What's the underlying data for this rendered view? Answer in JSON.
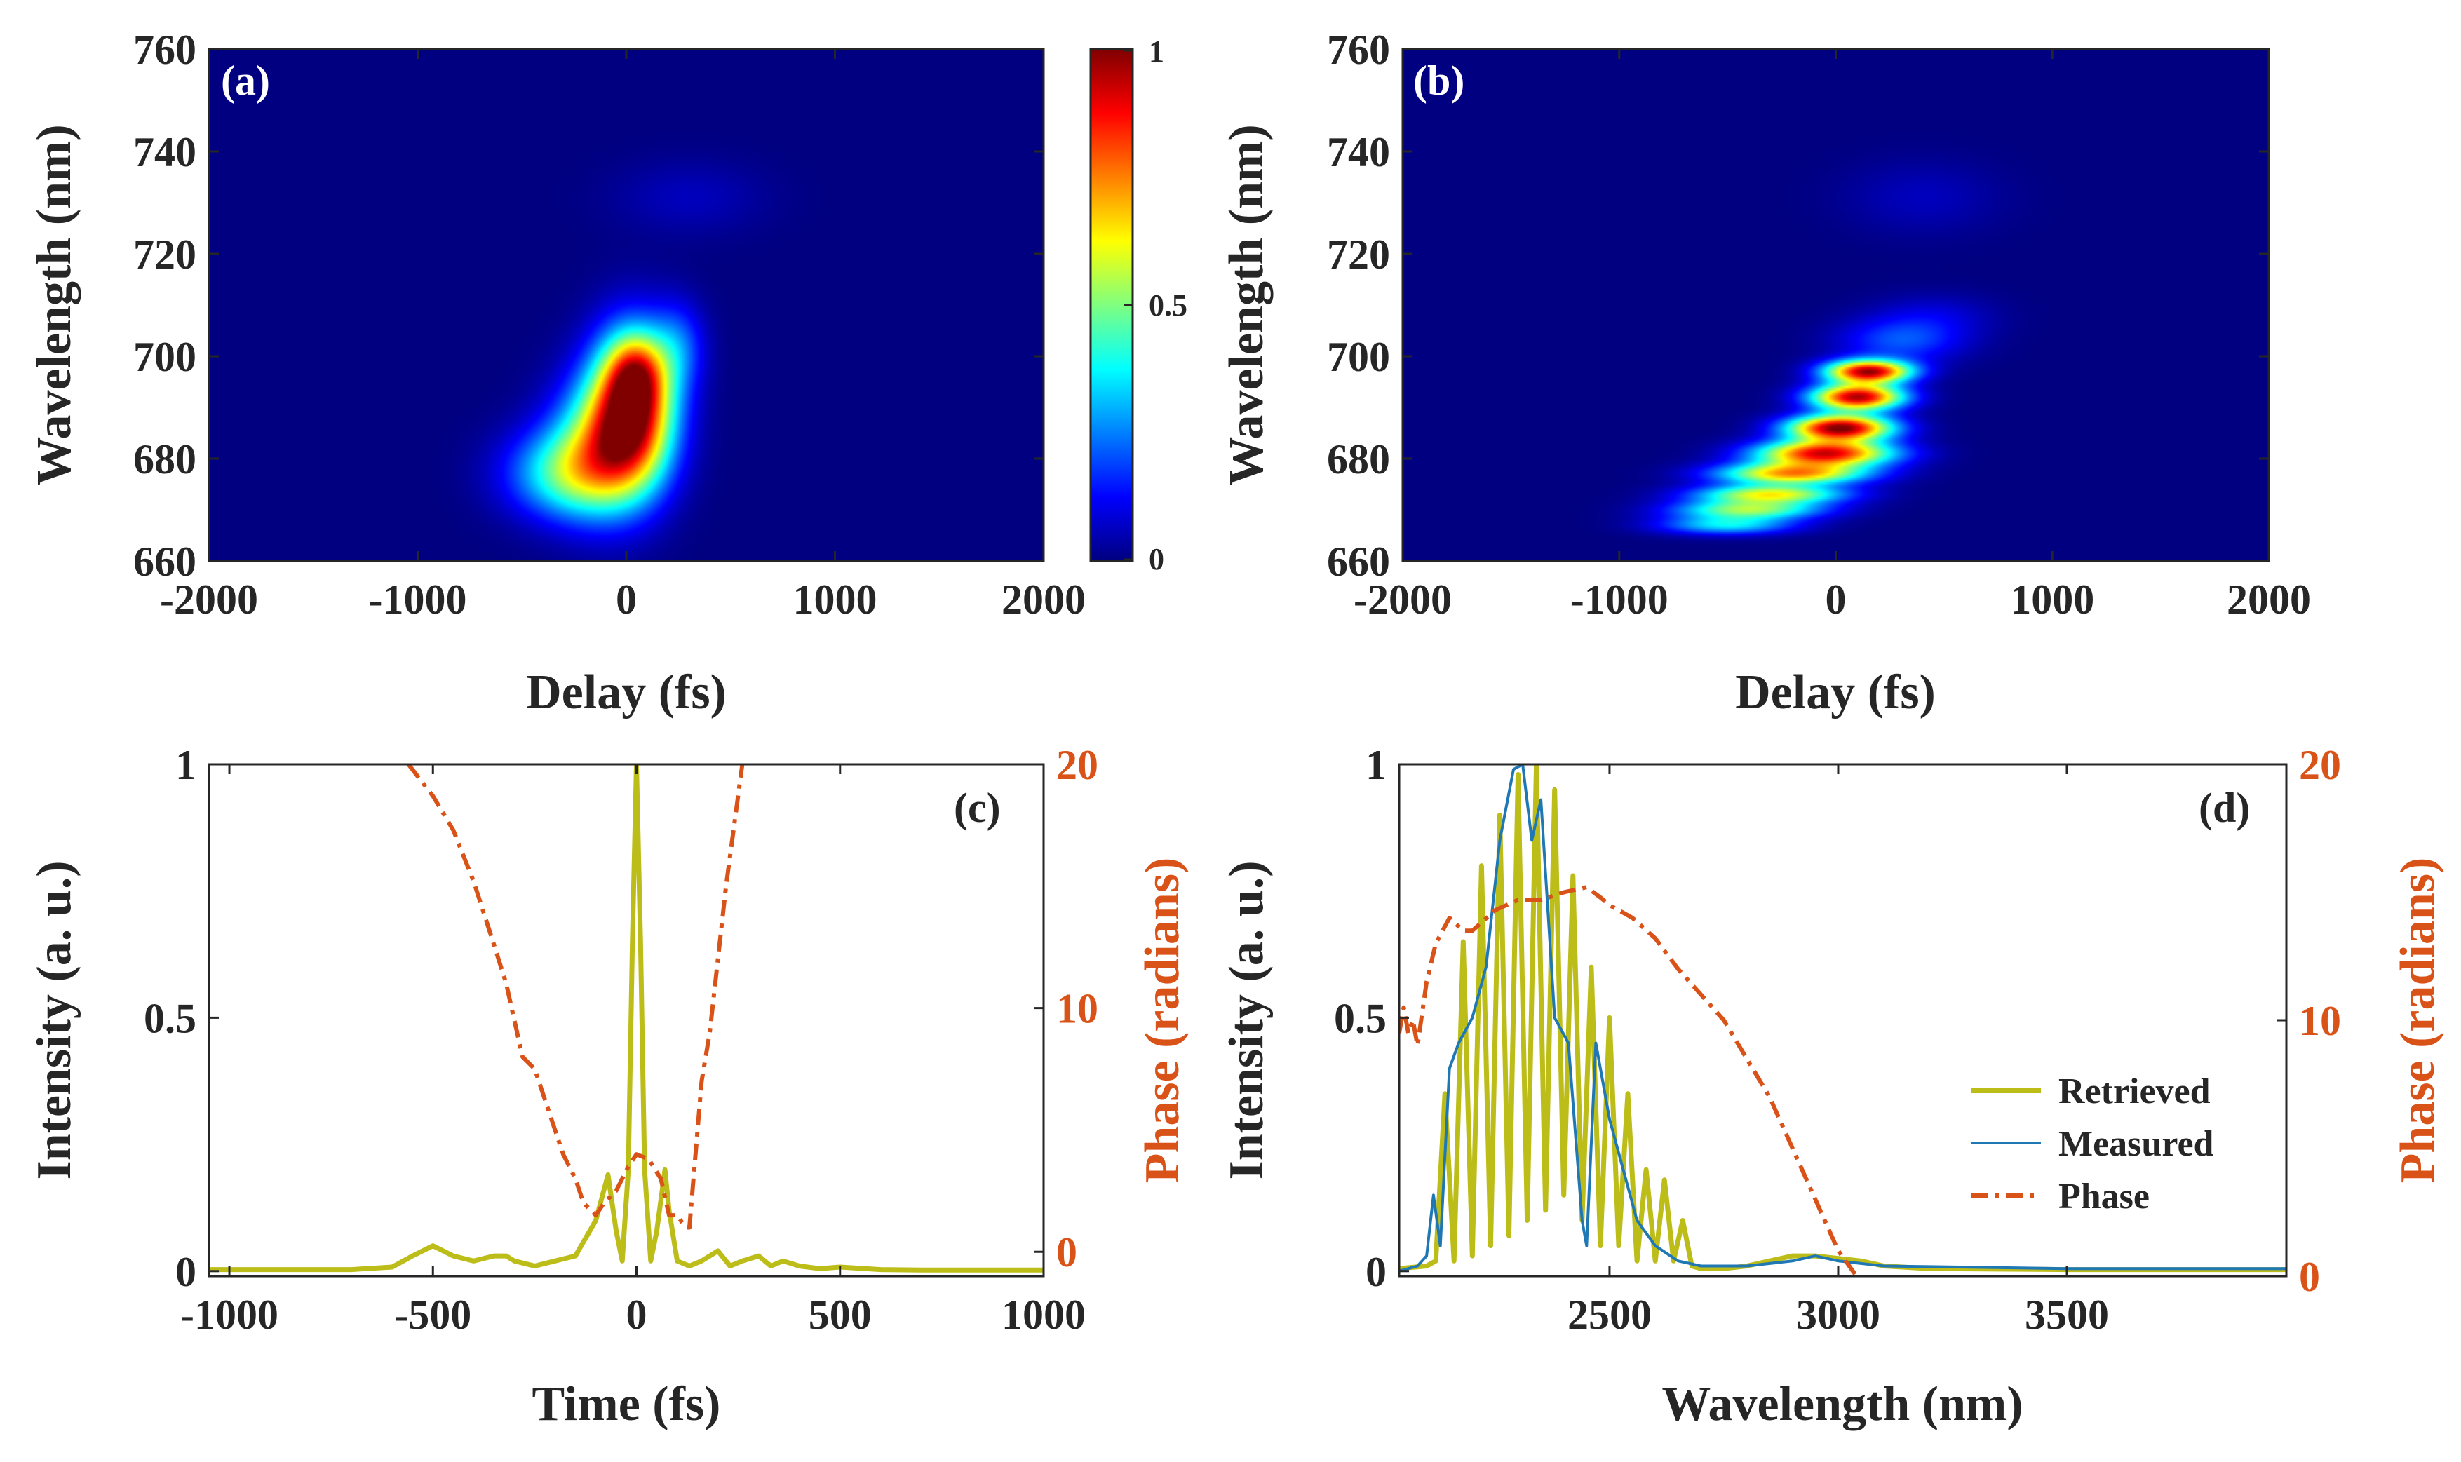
{
  "figure": {
    "colors": {
      "map_background": "#00007F",
      "retrieved": "#BDBD1A",
      "measured": "#1F77B4",
      "phase": "#D95319",
      "axis": "#262626"
    },
    "colormap": "jet",
    "colorbar_ticks": [
      "1",
      "0.5",
      "0"
    ]
  },
  "chart_data": [
    {
      "id": "a",
      "panel_label": "(a)",
      "type": "heatmap",
      "xlabel": "Delay (fs)",
      "ylabel": "Wavelength (nm)",
      "xlim": [
        -2000,
        2000
      ],
      "ylim": [
        660,
        760
      ],
      "xticks": [
        -2000,
        -1000,
        0,
        1000,
        2000
      ],
      "yticks": [
        660,
        680,
        700,
        720,
        740,
        760
      ],
      "intensity_range": [
        0,
        1
      ],
      "blobs": [
        {
          "x": -300,
          "y": 677,
          "sx": 200,
          "sy": 6,
          "a": 0.35
        },
        {
          "x": -120,
          "y": 682,
          "sx": 170,
          "sy": 9,
          "a": 0.45
        },
        {
          "x": 30,
          "y": 690,
          "sx": 140,
          "sy": 10,
          "a": 0.9
        },
        {
          "x": 50,
          "y": 697,
          "sx": 90,
          "sy": 5,
          "a": 0.3
        },
        {
          "x": 250,
          "y": 702,
          "sx": 90,
          "sy": 6,
          "a": 0.18
        },
        {
          "x": 300,
          "y": 731,
          "sx": 250,
          "sy": 5,
          "a": 0.06
        }
      ]
    },
    {
      "id": "b",
      "panel_label": "(b)",
      "type": "heatmap",
      "xlabel": "Delay (fs)",
      "ylabel": "Wavelength (nm)",
      "xlim": [
        -2000,
        2000
      ],
      "ylim": [
        660,
        760
      ],
      "xticks": [
        -2000,
        -1000,
        0,
        1000,
        2000
      ],
      "yticks": [
        660,
        680,
        700,
        720,
        740,
        760
      ],
      "intensity_range": [
        0,
        1
      ],
      "blobs": [
        {
          "x": -500,
          "y": 667,
          "sx": 220,
          "sy": 1.3,
          "a": 0.35
        },
        {
          "x": -400,
          "y": 670,
          "sx": 240,
          "sy": 1.3,
          "a": 0.5
        },
        {
          "x": -300,
          "y": 673,
          "sx": 240,
          "sy": 1.3,
          "a": 0.6
        },
        {
          "x": -200,
          "y": 677,
          "sx": 240,
          "sy": 1.5,
          "a": 0.7
        },
        {
          "x": -50,
          "y": 681,
          "sx": 220,
          "sy": 1.8,
          "a": 0.9
        },
        {
          "x": 20,
          "y": 686,
          "sx": 170,
          "sy": 1.8,
          "a": 1.0
        },
        {
          "x": 100,
          "y": 692,
          "sx": 150,
          "sy": 1.8,
          "a": 0.95
        },
        {
          "x": 150,
          "y": 697,
          "sx": 140,
          "sy": 1.6,
          "a": 0.95
        },
        {
          "x": 300,
          "y": 703,
          "sx": 200,
          "sy": 3,
          "a": 0.2
        },
        {
          "x": 450,
          "y": 708,
          "sx": 200,
          "sy": 3,
          "a": 0.08
        },
        {
          "x": 400,
          "y": 731,
          "sx": 250,
          "sy": 5,
          "a": 0.06
        }
      ]
    },
    {
      "id": "c",
      "panel_label": "(c)",
      "type": "line",
      "xlabel": "Time (fs)",
      "ylabel": "Intensity (a. u.)",
      "y2label": "Phase (radians)",
      "xlim": [
        -1050,
        1000
      ],
      "ylim": [
        -0.01,
        1
      ],
      "y2lim": [
        -1,
        20
      ],
      "xticks": [
        -1000,
        -500,
        0,
        500,
        1000
      ],
      "yticks": [
        0,
        0.5,
        1
      ],
      "yticklabels": [
        "0",
        "0.5",
        "1"
      ],
      "y2ticks": [
        0,
        10,
        20
      ],
      "y2ticklabels": [
        "0",
        "10",
        "20"
      ],
      "series": [
        {
          "name": "Intensity",
          "axis": "left",
          "color": "#BDBD1A",
          "x": [
            -1050,
            -700,
            -600,
            -550,
            -500,
            -450,
            -400,
            -350,
            -320,
            -300,
            -250,
            -200,
            -150,
            -100,
            -70,
            -50,
            -35,
            -20,
            -10,
            0,
            10,
            20,
            35,
            50,
            70,
            80,
            100,
            130,
            160,
            200,
            230,
            260,
            300,
            330,
            360,
            400,
            450,
            500,
            600,
            700,
            800,
            1000
          ],
          "y": [
            0.003,
            0.003,
            0.008,
            0.03,
            0.05,
            0.03,
            0.02,
            0.03,
            0.03,
            0.02,
            0.01,
            0.02,
            0.03,
            0.1,
            0.19,
            0.08,
            0.02,
            0.2,
            0.65,
            1.0,
            0.65,
            0.2,
            0.02,
            0.08,
            0.2,
            0.12,
            0.02,
            0.01,
            0.02,
            0.04,
            0.01,
            0.02,
            0.03,
            0.01,
            0.02,
            0.01,
            0.005,
            0.008,
            0.003,
            0.002,
            0.002,
            0.002
          ]
        },
        {
          "name": "Phase",
          "axis": "right",
          "color": "#D95319",
          "dash": "dash-dot",
          "x": [
            -560,
            -500,
            -450,
            -400,
            -350,
            -320,
            -300,
            -280,
            -250,
            -220,
            -200,
            -180,
            -150,
            -130,
            -100,
            -80,
            -50,
            -20,
            0,
            30,
            60,
            80,
            100,
            120,
            130,
            140,
            150,
            160,
            180,
            200,
            220,
            240,
            260
          ],
          "y": [
            20,
            18.7,
            17.3,
            15.2,
            12.6,
            11,
            9.5,
            8,
            7.5,
            6,
            5,
            4,
            3,
            2,
            1.5,
            2,
            2.5,
            3.5,
            4,
            3.8,
            3,
            1.5,
            1.5,
            1,
            1,
            3,
            5,
            7,
            9,
            12,
            15,
            17.5,
            20
          ]
        }
      ]
    },
    {
      "id": "d",
      "panel_label": "(d)",
      "type": "line",
      "xlabel": "Wavelength (nm)",
      "ylabel": "Intensity (a. u.)",
      "y2label": "Phase (radians)",
      "xlim": [
        2040,
        3980
      ],
      "ylim": [
        -0.01,
        1
      ],
      "y2lim": [
        0,
        20
      ],
      "xticks": [
        2500,
        3000,
        3500
      ],
      "yticks": [
        0,
        0.5,
        1
      ],
      "yticklabels": [
        "0",
        "0.5",
        "1"
      ],
      "y2ticks": [
        0,
        10,
        20
      ],
      "y2ticklabels": [
        "0",
        "10",
        "20"
      ],
      "legend": {
        "location": "right",
        "entries": [
          "Retrieved",
          "Measured",
          "Phase"
        ]
      },
      "series": [
        {
          "name": "Retrieved",
          "axis": "left",
          "color": "#BDBD1A",
          "x": [
            2040,
            2100,
            2120,
            2140,
            2160,
            2180,
            2200,
            2220,
            2240,
            2260,
            2280,
            2300,
            2320,
            2340,
            2360,
            2380,
            2400,
            2420,
            2440,
            2460,
            2480,
            2500,
            2520,
            2540,
            2560,
            2580,
            2600,
            2620,
            2640,
            2660,
            2680,
            2700,
            2750,
            2800,
            2850,
            2900,
            2950,
            3000,
            3050,
            3100,
            3200,
            3500,
            3980
          ],
          "y": [
            0.005,
            0.01,
            0.02,
            0.35,
            0.02,
            0.65,
            0.03,
            0.8,
            0.05,
            0.9,
            0.07,
            0.98,
            0.1,
            1.0,
            0.12,
            0.95,
            0.15,
            0.78,
            0.1,
            0.6,
            0.05,
            0.5,
            0.05,
            0.35,
            0.02,
            0.2,
            0.02,
            0.18,
            0.02,
            0.1,
            0.01,
            0.005,
            0.005,
            0.01,
            0.02,
            0.03,
            0.03,
            0.025,
            0.02,
            0.01,
            0.005,
            0.003,
            0.003
          ]
        },
        {
          "name": "Measured",
          "axis": "left",
          "color": "#1F77B4",
          "x": [
            2040,
            2080,
            2100,
            2115,
            2130,
            2150,
            2170,
            2200,
            2230,
            2260,
            2290,
            2310,
            2330,
            2350,
            2380,
            2410,
            2440,
            2450,
            2470,
            2500,
            2530,
            2560,
            2600,
            2650,
            2700,
            2800,
            2900,
            2950,
            3000,
            3100,
            3500,
            3980
          ],
          "y": [
            0.0,
            0.01,
            0.03,
            0.15,
            0.05,
            0.4,
            0.45,
            0.5,
            0.6,
            0.85,
            0.99,
            1.0,
            0.85,
            0.93,
            0.5,
            0.45,
            0.1,
            0.05,
            0.45,
            0.3,
            0.2,
            0.1,
            0.05,
            0.02,
            0.01,
            0.01,
            0.02,
            0.03,
            0.02,
            0.01,
            0.005,
            0.005
          ]
        },
        {
          "name": "Phase",
          "axis": "right",
          "color": "#D95319",
          "dash": "dash-dot",
          "x": [
            2040,
            2050,
            2060,
            2070,
            2080,
            2100,
            2120,
            2150,
            2180,
            2200,
            2250,
            2300,
            2350,
            2400,
            2450,
            2480,
            2500,
            2550,
            2600,
            2650,
            2700,
            2750,
            2800,
            2850,
            2900,
            2950,
            3000,
            3040
          ],
          "y": [
            9.5,
            10.5,
            9.5,
            10,
            9,
            11.5,
            13,
            14,
            13.5,
            13.5,
            14.3,
            14.7,
            14.7,
            15,
            15.2,
            14.8,
            14.5,
            14,
            13.2,
            12,
            11,
            10,
            8.5,
            7,
            5,
            3,
            1,
            0
          ]
        }
      ]
    }
  ]
}
